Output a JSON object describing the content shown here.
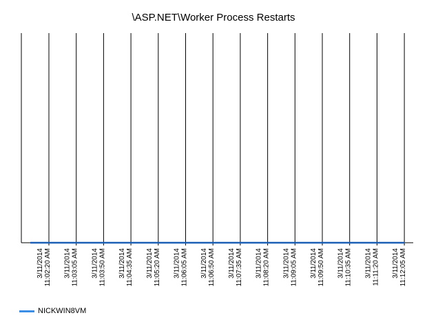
{
  "chart_data": {
    "type": "line",
    "title": "\\ASP.NET\\Worker Process Restarts",
    "xlabel": "",
    "ylabel": "",
    "categories": [
      "3/11/2014 11:02:20 AM",
      "3/11/2014 11:03:05 AM",
      "3/11/2014 11:03:50 AM",
      "3/11/2014 11:04:35 AM",
      "3/11/2014 11:05:20 AM",
      "3/11/2014 11:06:05 AM",
      "3/11/2014 11:06:50 AM",
      "3/11/2014 11:07:35 AM",
      "3/11/2014 11:08:20 AM",
      "3/11/2014 11:09:05 AM",
      "3/11/2014 11:09:50 AM",
      "3/11/2014 11:10:35 AM",
      "3/11/2014 11:11:20 AM",
      "3/11/2014 11:12:05 AM"
    ],
    "tick_labels": [
      [
        "3/11/2014",
        "11:02:20 AM"
      ],
      [
        "3/11/2014",
        "11:03:05 AM"
      ],
      [
        "3/11/2014",
        "11:03:50 AM"
      ],
      [
        "3/11/2014",
        "11:04:35 AM"
      ],
      [
        "3/11/2014",
        "11:05:20 AM"
      ],
      [
        "3/11/2014",
        "11:06:05 AM"
      ],
      [
        "3/11/2014",
        "11:06:50 AM"
      ],
      [
        "3/11/2014",
        "11:07:35 AM"
      ],
      [
        "3/11/2014",
        "11:08:20 AM"
      ],
      [
        "3/11/2014",
        "11:09:05 AM"
      ],
      [
        "3/11/2014",
        "11:09:50 AM"
      ],
      [
        "3/11/2014",
        "11:10:35 AM"
      ],
      [
        "3/11/2014",
        "11:11:20 AM"
      ],
      [
        "3/11/2014",
        "11:12:05 AM"
      ]
    ],
    "series": [
      {
        "name": "NICKWIN8VM",
        "color": "#1a5fb4",
        "values": [
          0,
          0,
          0,
          0,
          0,
          0,
          0,
          0,
          0,
          0,
          0,
          0,
          0,
          0
        ]
      }
    ],
    "grid": true,
    "legend": "bottom-left",
    "legend_swatch_color": "#3a8ee6"
  }
}
